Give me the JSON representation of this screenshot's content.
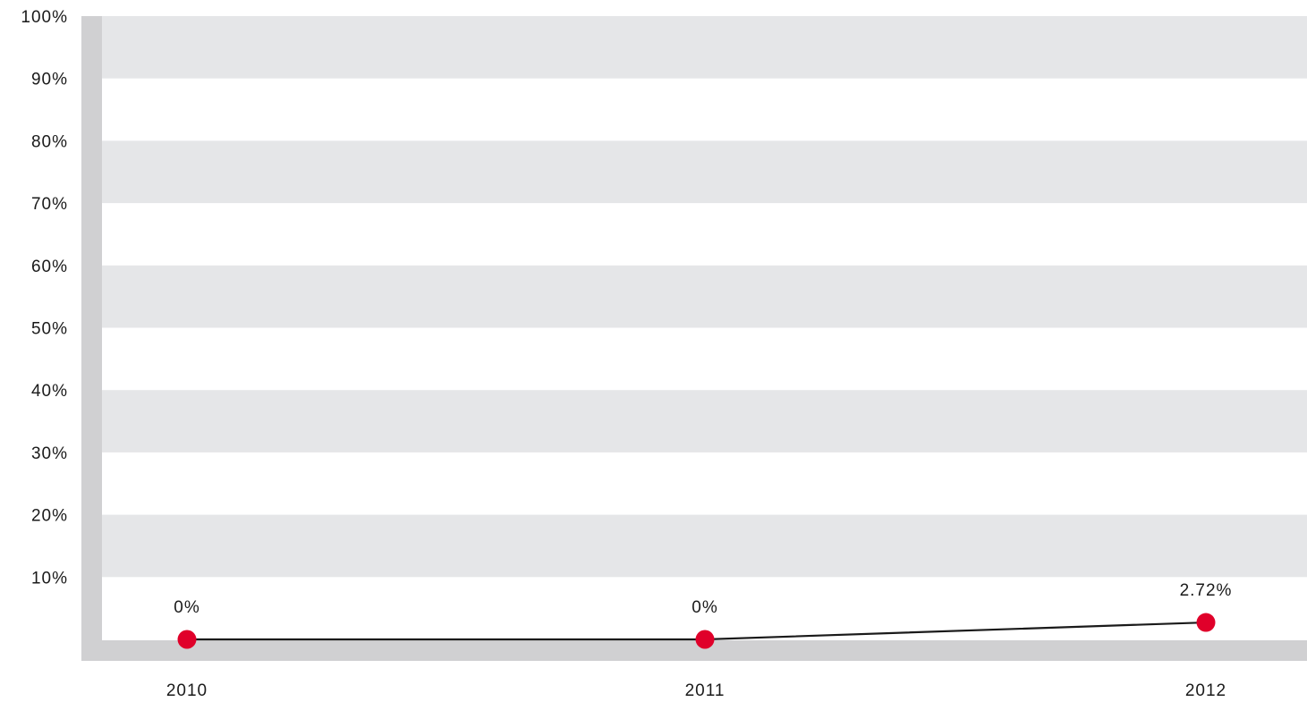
{
  "chart_data": {
    "type": "line",
    "x": [
      "2010",
      "2011",
      "2012"
    ],
    "series": [
      {
        "values": [
          0,
          0,
          2.72
        ]
      }
    ],
    "data_labels": [
      "0%",
      "0%",
      "2.72%"
    ],
    "y_ticks": [
      "10%",
      "20%",
      "30%",
      "40%",
      "50%",
      "60%",
      "70%",
      "80%",
      "90%",
      "100%"
    ],
    "ylim": [
      0,
      100
    ],
    "title": "",
    "xlabel": "",
    "ylabel": "",
    "grid": "alternating horizontal bands",
    "legend": "none",
    "colors": {
      "band": "#e5e6e8",
      "axis": "#d0d0d2",
      "line": "#1a1a1a",
      "marker": "#e0002a"
    }
  }
}
